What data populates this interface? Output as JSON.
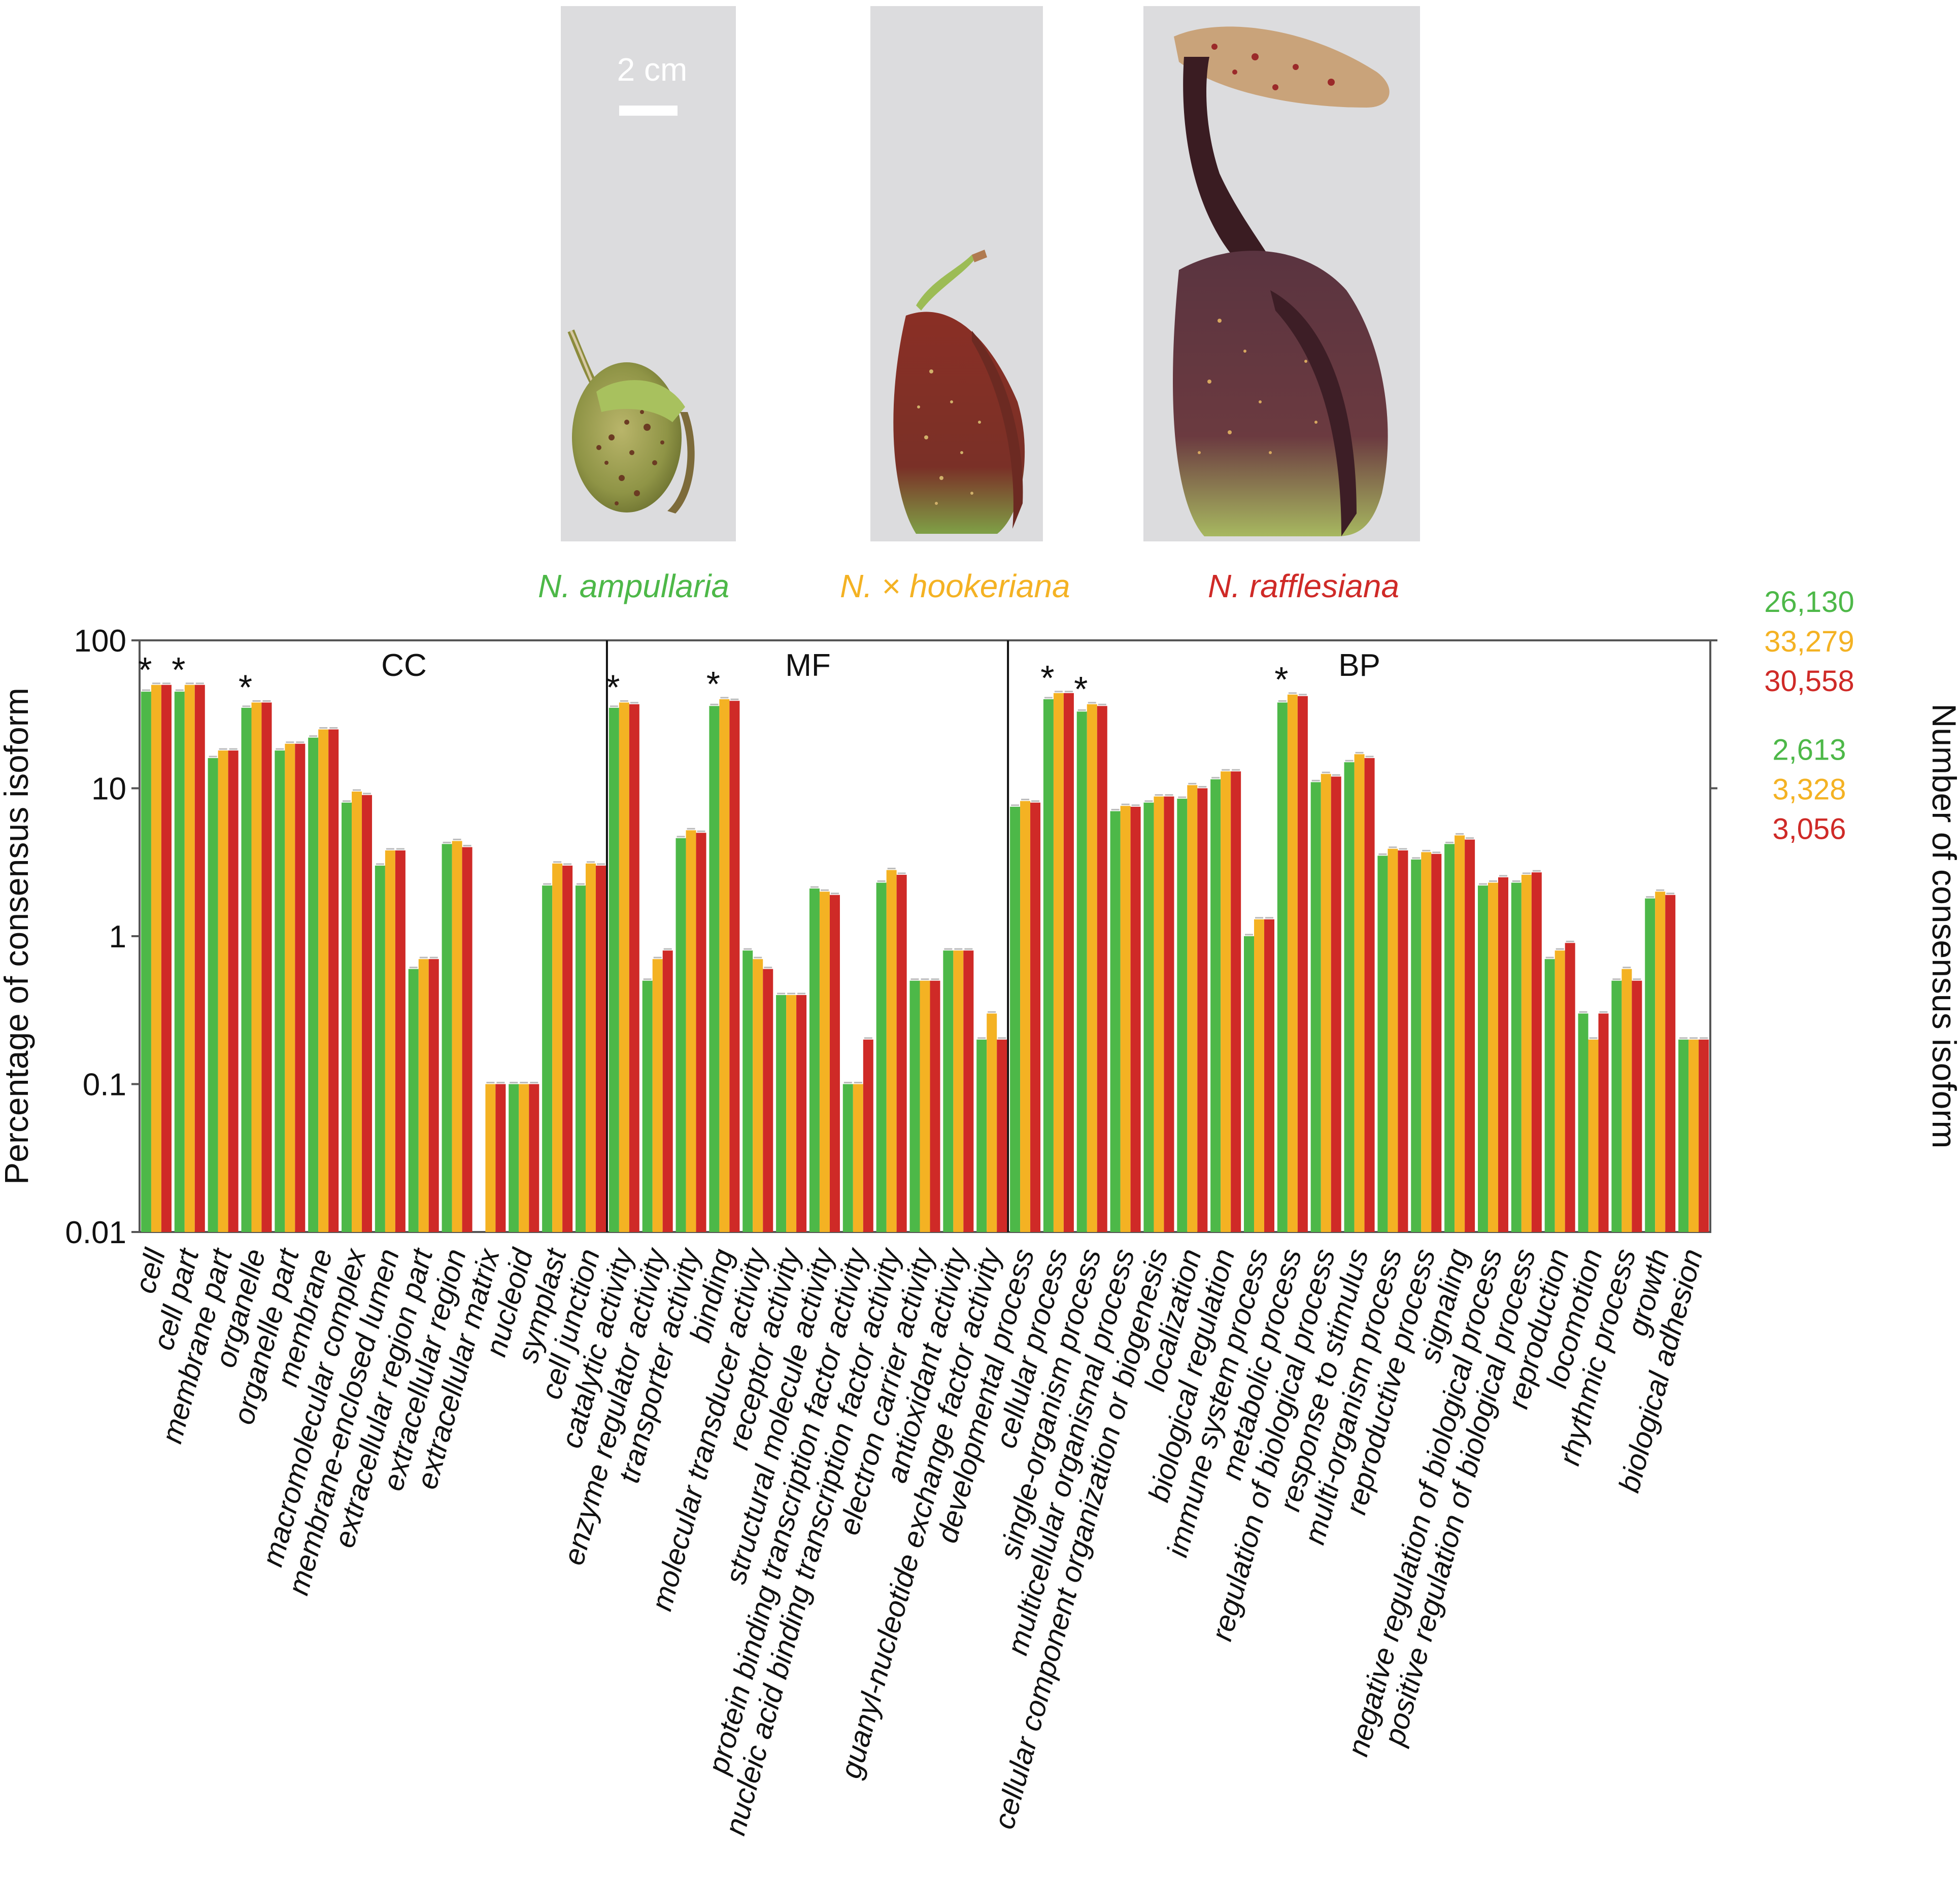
{
  "photos": {
    "scale_bar_label": "2 cm",
    "panels": [
      {
        "species": "N. ampullaria"
      },
      {
        "species": "N. × hookeriana"
      },
      {
        "species": "N. rafflesiana"
      }
    ]
  },
  "colors": {
    "ampullaria": "#4db848",
    "hookeriana": "#f4b223",
    "rafflesiana": "#cf2a27",
    "axis": "#555555",
    "text": "#111111"
  },
  "chart_data": {
    "type": "bar",
    "y_scale": "log",
    "ylim": [
      0.01,
      100
    ],
    "yticks": [
      0.01,
      0.1,
      1,
      10,
      100
    ],
    "ytick_labels": [
      "0.01",
      "0.1",
      "1",
      "10",
      "100"
    ],
    "ylabel": "Percentage of consensus isoform",
    "ylabel_right": "Number of consensus isoform",
    "right_ticks": [
      {
        "at": 100,
        "labels": [
          "26,130",
          "33,279",
          "30,558"
        ]
      },
      {
        "at": 10,
        "labels": [
          "2,613",
          "3,328",
          "3,056"
        ]
      }
    ],
    "series": [
      {
        "name": "N. ampullaria",
        "color": "#4db848"
      },
      {
        "name": "N. × hookeriana",
        "color": "#f4b223"
      },
      {
        "name": "N. rafflesiana",
        "color": "#cf2a27"
      }
    ],
    "groups": [
      {
        "label": "CC",
        "categories": [
          {
            "name": "cell",
            "values": [
              45,
              50,
              50
            ],
            "star": true
          },
          {
            "name": "cell part",
            "values": [
              45,
              50,
              50
            ],
            "star": true
          },
          {
            "name": "membrane part",
            "values": [
              16,
              18,
              18
            ],
            "star": false
          },
          {
            "name": "organelle",
            "values": [
              35,
              38,
              38
            ],
            "star": true
          },
          {
            "name": "organelle part",
            "values": [
              18,
              20,
              20
            ],
            "star": false
          },
          {
            "name": "membrane",
            "values": [
              22,
              25,
              25
            ],
            "star": false
          },
          {
            "name": "macromolecular complex",
            "values": [
              8,
              9.5,
              9
            ],
            "star": false
          },
          {
            "name": "membrane-enclosed lumen",
            "values": [
              3,
              3.8,
              3.8
            ],
            "star": false
          },
          {
            "name": "extracellular region part",
            "values": [
              0.6,
              0.7,
              0.7
            ],
            "star": false
          },
          {
            "name": "extracellular region",
            "values": [
              4.2,
              4.4,
              4
            ],
            "star": false
          },
          {
            "name": "extracellular matrix",
            "values": [
              null,
              0.1,
              0.1
            ],
            "star": false
          },
          {
            "name": "nucleoid",
            "values": [
              0.1,
              0.1,
              0.1
            ],
            "star": false
          },
          {
            "name": "symplast",
            "values": [
              2.2,
              3.1,
              3
            ],
            "star": false
          },
          {
            "name": "cell junction",
            "values": [
              2.2,
              3.1,
              3
            ],
            "star": false
          }
        ]
      },
      {
        "label": "MF",
        "categories": [
          {
            "name": "catalytic activity",
            "values": [
              35,
              38,
              37
            ],
            "star": true
          },
          {
            "name": "enzyme regulator activity",
            "values": [
              0.5,
              0.7,
              0.8
            ],
            "star": false
          },
          {
            "name": "transporter activity",
            "values": [
              4.6,
              5.2,
              5
            ],
            "star": false
          },
          {
            "name": "binding",
            "values": [
              36,
              40,
              39
            ],
            "star": true
          },
          {
            "name": "molecular transducer activity",
            "values": [
              0.8,
              0.7,
              0.6
            ],
            "star": false
          },
          {
            "name": "receptor activity",
            "values": [
              0.4,
              0.4,
              0.4
            ],
            "star": false
          },
          {
            "name": "structural molecule activity",
            "values": [
              2.1,
              2,
              1.9
            ],
            "star": false
          },
          {
            "name": "protein binding transcription factor activity",
            "values": [
              0.1,
              0.1,
              0.2
            ],
            "star": false
          },
          {
            "name": "nucleic acid binding transcription factor activity",
            "values": [
              2.3,
              2.8,
              2.6
            ],
            "star": false
          },
          {
            "name": "electron carrier activity",
            "values": [
              0.5,
              0.5,
              0.5
            ],
            "star": false
          },
          {
            "name": "antioxidant activity",
            "values": [
              0.8,
              0.8,
              0.8
            ],
            "star": false
          },
          {
            "name": "guanyl-nucleotide exchange factor activity",
            "values": [
              0.2,
              0.3,
              0.2
            ],
            "star": false
          }
        ]
      },
      {
        "label": "BP",
        "categories": [
          {
            "name": "developmental process",
            "values": [
              7.5,
              8.2,
              8
            ],
            "star": false
          },
          {
            "name": "cellular process",
            "values": [
              40,
              44,
              44
            ],
            "star": true
          },
          {
            "name": "single-organism process",
            "values": [
              33,
              37,
              36
            ],
            "star": true
          },
          {
            "name": "multicellular organismal process",
            "values": [
              7,
              7.6,
              7.5
            ],
            "star": false
          },
          {
            "name": "cellular component organization or biogenesis",
            "values": [
              8,
              8.8,
              8.8
            ],
            "star": false
          },
          {
            "name": "localization",
            "values": [
              8.5,
              10.5,
              10
            ],
            "star": false
          },
          {
            "name": "biological regulation",
            "values": [
              11.5,
              13,
              13
            ],
            "star": false
          },
          {
            "name": "immune system process",
            "values": [
              1,
              1.3,
              1.3
            ],
            "star": false
          },
          {
            "name": "metabolic process",
            "values": [
              38,
              43,
              42
            ],
            "star": true
          },
          {
            "name": "regulation of biological process",
            "values": [
              11,
              12.5,
              12
            ],
            "star": false
          },
          {
            "name": "response to stimulus",
            "values": [
              15,
              17,
              16
            ],
            "star": false
          },
          {
            "name": "multi-organism process",
            "values": [
              3.5,
              3.9,
              3.8
            ],
            "star": false
          },
          {
            "name": "reproductive process",
            "values": [
              3.3,
              3.7,
              3.6
            ],
            "star": false
          },
          {
            "name": "signaling",
            "values": [
              4.2,
              4.8,
              4.5
            ],
            "star": false
          },
          {
            "name": "negative regulation of biological process",
            "values": [
              2.2,
              2.3,
              2.5
            ],
            "star": false
          },
          {
            "name": "positive regulation of biological process",
            "values": [
              2.3,
              2.6,
              2.7
            ],
            "star": false
          },
          {
            "name": "reproduction",
            "values": [
              0.7,
              0.8,
              0.9
            ],
            "star": false
          },
          {
            "name": "locomotion",
            "values": [
              0.3,
              0.2,
              0.3
            ],
            "star": false
          },
          {
            "name": "rhythmic process",
            "values": [
              0.5,
              0.6,
              0.5
            ],
            "star": false
          },
          {
            "name": "growth",
            "values": [
              1.8,
              2,
              1.9
            ],
            "star": false
          },
          {
            "name": "biological adhesion",
            "values": [
              0.2,
              0.2,
              0.2
            ],
            "star": false
          }
        ]
      }
    ]
  }
}
